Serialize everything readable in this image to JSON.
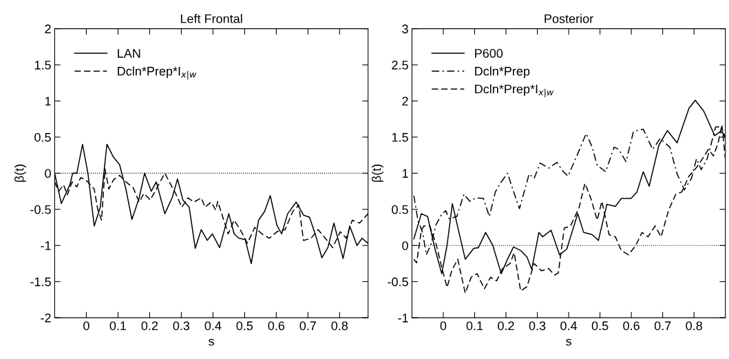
{
  "chart_data": [
    {
      "type": "line",
      "title": "Left Frontal",
      "xlabel": "s",
      "ylabel": "β(t)",
      "xlim": [
        -0.1,
        0.89
      ],
      "xticks": [
        0,
        0.1,
        0.2,
        0.3,
        0.4,
        0.5,
        0.6,
        0.7,
        0.8
      ],
      "ylim": [
        -2,
        2
      ],
      "yticks": [
        -2,
        -1.5,
        -1,
        -0.5,
        0,
        0.5,
        1,
        1.5,
        2
      ],
      "grid": false,
      "legend": "top left",
      "marker": "none",
      "ref_lines": [
        {
          "axis": "y",
          "value": 0,
          "label": null,
          "color": "#000000",
          "line_style": "dotted"
        }
      ],
      "series": [
        {
          "name": "LAN",
          "color": "#000000",
          "line_style": "solid",
          "x": [
            -0.1,
            -0.079,
            -0.052,
            -0.043,
            -0.03,
            -0.012,
            0.005,
            0.025,
            0.044,
            0.065,
            0.086,
            0.105,
            0.125,
            0.144,
            0.167,
            0.184,
            0.205,
            0.221,
            0.248,
            0.271,
            0.288,
            0.305,
            0.325,
            0.344,
            0.363,
            0.382,
            0.398,
            0.421,
            0.45,
            0.467,
            0.482,
            0.502,
            0.521,
            0.544,
            0.563,
            0.581,
            0.602,
            0.617,
            0.636,
            0.663,
            0.686,
            0.705,
            0.725,
            0.744,
            0.763,
            0.782,
            0.811,
            0.832,
            0.855,
            0.871,
            0.89
          ],
          "values": [
            0,
            -0.42,
            -0.16,
            0,
            0,
            0.4,
            0,
            -0.73,
            -0.47,
            0.4,
            0.22,
            0.12,
            -0.22,
            -0.64,
            -0.34,
            0,
            -0.25,
            -0.12,
            -0.56,
            -0.34,
            -0.08,
            -0.37,
            -0.47,
            -1.04,
            -0.78,
            -0.93,
            -0.84,
            -1.03,
            -0.56,
            -0.84,
            -0.9,
            -0.92,
            -1.25,
            -0.65,
            -0.53,
            -0.31,
            -0.72,
            -0.84,
            -0.56,
            -0.4,
            -0.58,
            -0.61,
            -0.87,
            -1.17,
            -1.03,
            -0.69,
            -1.18,
            -0.73,
            -1.0,
            -0.9,
            -0.97
          ]
        },
        {
          "name": "Dcln*Prep*I$_{x|w}$",
          "color": "#000000",
          "line_style": "dashed",
          "x": [
            -0.1,
            -0.087,
            -0.072,
            -0.06,
            -0.045,
            -0.03,
            -0.018,
            -0.002,
            0.013,
            0.025,
            0.036,
            0.048,
            0.059,
            0.071,
            0.086,
            0.105,
            0.125,
            0.148,
            0.167,
            0.182,
            0.202,
            0.217,
            0.248,
            0.267,
            0.282,
            0.302,
            0.321,
            0.34,
            0.363,
            0.375,
            0.394,
            0.409,
            0.415,
            0.432,
            0.448,
            0.467,
            0.486,
            0.509,
            0.532,
            0.555,
            0.578,
            0.602,
            0.628,
            0.652,
            0.671,
            0.686,
            0.71,
            0.732,
            0.755,
            0.778,
            0.802,
            0.821,
            0.84,
            0.863,
            0.89
          ],
          "values": [
            -0.12,
            -0.25,
            -0.16,
            -0.3,
            -0.12,
            -0.19,
            -0.06,
            -0.09,
            -0.16,
            -0.22,
            -0.5,
            -0.65,
            0.06,
            -0.22,
            -0.09,
            -0.03,
            -0.12,
            -0.2,
            -0.4,
            -0.28,
            -0.37,
            -0.25,
            0,
            -0.16,
            -0.28,
            -0.47,
            -0.34,
            -0.4,
            -0.34,
            -0.47,
            -0.4,
            -0.51,
            -0.39,
            -0.62,
            -0.84,
            -0.65,
            -0.78,
            -0.97,
            -0.75,
            -0.84,
            -0.9,
            -0.81,
            -0.78,
            -0.53,
            -0.44,
            -0.93,
            -0.9,
            -0.78,
            -0.9,
            -1.03,
            -0.81,
            -0.9,
            -0.65,
            -0.69,
            -0.56
          ]
        }
      ]
    },
    {
      "type": "line",
      "title": "Posterior",
      "xlabel": "s",
      "ylabel": "β(t)",
      "xlim": [
        -0.1,
        0.9
      ],
      "xticks": [
        0,
        0.1,
        0.2,
        0.3,
        0.4,
        0.5,
        0.6,
        0.7,
        0.8
      ],
      "ylim": [
        -1,
        3
      ],
      "yticks": [
        -1,
        -0.5,
        0,
        0.5,
        1,
        1.5,
        2,
        2.5,
        3
      ],
      "grid": false,
      "legend": "top left",
      "marker": "none",
      "ref_lines": [
        {
          "axis": "y",
          "value": 0,
          "label": null,
          "color": "#000000",
          "line_style": "dotted"
        }
      ],
      "series": [
        {
          "name": "P600",
          "color": "#000000",
          "line_style": "solid",
          "x": [
            -0.094,
            -0.07,
            -0.05,
            -0.027,
            -0.005,
            0.012,
            0.029,
            0.05,
            0.07,
            0.097,
            0.112,
            0.135,
            0.158,
            0.185,
            0.205,
            0.224,
            0.247,
            0.267,
            0.282,
            0.305,
            0.317,
            0.344,
            0.371,
            0.394,
            0.429,
            0.448,
            0.475,
            0.495,
            0.522,
            0.549,
            0.568,
            0.599,
            0.618,
            0.638,
            0.657,
            0.688,
            0.715,
            0.746,
            0.784,
            0.804,
            0.831,
            0.866,
            0.885,
            0.9
          ],
          "values": [
            0.09,
            0.44,
            0.4,
            -0.04,
            -0.39,
            0,
            0.58,
            0.18,
            -0.19,
            -0.04,
            -0.03,
            0.18,
            0,
            -0.39,
            -0.19,
            -0.02,
            -0.07,
            -0.16,
            -0.33,
            0.18,
            0.12,
            0.21,
            -0.13,
            -0.05,
            0.44,
            0.18,
            0.15,
            0.07,
            0.57,
            0.54,
            0.65,
            0.65,
            0.74,
            1.02,
            0.82,
            1.39,
            1.59,
            1.42,
            1.9,
            2.01,
            1.86,
            1.52,
            1.58,
            1.52
          ]
        },
        {
          "name": "Dcln*Prep",
          "color": "#000000",
          "line_style": "dashdot",
          "x": [
            -0.094,
            -0.081,
            -0.066,
            -0.054,
            -0.039,
            -0.023,
            -0.004,
            0.008,
            0.019,
            0.043,
            0.066,
            0.085,
            0.104,
            0.128,
            0.147,
            0.166,
            0.182,
            0.205,
            0.22,
            0.243,
            0.274,
            0.29,
            0.309,
            0.336,
            0.363,
            0.383,
            0.398,
            0.429,
            0.456,
            0.475,
            0.491,
            0.518,
            0.545,
            0.56,
            0.583,
            0.607,
            0.638,
            0.668,
            0.692,
            0.723,
            0.746,
            0.769,
            0.792,
            0.808,
            0.823,
            0.842,
            0.869,
            0.885,
            0.9
          ],
          "values": [
            0.69,
            0.35,
            0.18,
            -0.13,
            0.02,
            0.29,
            0.44,
            0.48,
            0.37,
            0.4,
            0.71,
            0.61,
            0.66,
            0.65,
            0.4,
            0.74,
            0.86,
            1.0,
            0.8,
            0.51,
            0.99,
            0.93,
            1.14,
            1.07,
            1.15,
            1.02,
            0.96,
            1.27,
            1.55,
            1.36,
            1.11,
            1.02,
            1.36,
            1.33,
            1.16,
            1.58,
            1.61,
            1.33,
            1.48,
            1.36,
            0.99,
            0.77,
            0.93,
            1.2,
            1.05,
            1.2,
            1.64,
            1.64,
            1.48
          ]
        },
        {
          "name": "Dcln*Prep*I$_{x|w}$",
          "color": "#000000",
          "line_style": "dashed",
          "x": [
            -0.094,
            -0.085,
            -0.07,
            -0.062,
            -0.043,
            -0.023,
            -0.004,
            0.012,
            0.027,
            0.046,
            0.07,
            0.089,
            0.108,
            0.131,
            0.151,
            0.17,
            0.189,
            0.213,
            0.226,
            0.247,
            0.267,
            0.29,
            0.313,
            0.336,
            0.355,
            0.367,
            0.386,
            0.406,
            0.433,
            0.452,
            0.471,
            0.491,
            0.506,
            0.529,
            0.549,
            0.568,
            0.591,
            0.614,
            0.634,
            0.653,
            0.676,
            0.695,
            0.719,
            0.742,
            0.761,
            0.784,
            0.808,
            0.827,
            0.846,
            0.862,
            0.877,
            0.889,
            0.9
          ],
          "values": [
            -0.19,
            -0.24,
            0.21,
            0.27,
            0.27,
            0.02,
            -0.32,
            -0.58,
            -0.35,
            -0.19,
            -0.66,
            -0.44,
            -0.39,
            -0.6,
            -0.44,
            -0.49,
            -0.32,
            -0.25,
            -0.1,
            -0.63,
            -0.57,
            -0.25,
            -0.35,
            -0.32,
            -0.41,
            -0.38,
            0.24,
            0.27,
            0.52,
            0.86,
            0.65,
            0.35,
            0.61,
            0.15,
            0.12,
            -0.07,
            -0.13,
            0,
            0.18,
            0.12,
            0.27,
            0.12,
            0.49,
            0.71,
            0.74,
            0.96,
            1.08,
            1.2,
            1.33,
            1.24,
            1.42,
            1.67,
            1.2
          ]
        }
      ]
    }
  ]
}
